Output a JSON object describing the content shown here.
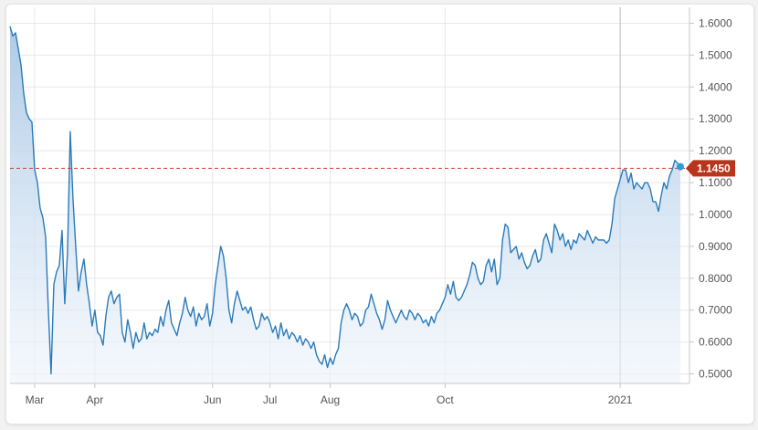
{
  "chart_data": {
    "type": "area",
    "title": "",
    "xlabel": "",
    "ylabel": "",
    "ylim": [
      0.47,
      1.65
    ],
    "y_ticks": [
      "1.6000",
      "1.5000",
      "1.4000",
      "1.3000",
      "1.2000",
      "1.1000",
      "1.0000",
      "0.9000",
      "0.8000",
      "0.7000",
      "0.6000",
      "0.5000"
    ],
    "x_ticks": [
      {
        "label": "Mar",
        "index": 9
      },
      {
        "label": "Apr",
        "index": 31
      },
      {
        "label": "Jun",
        "index": 74
      },
      {
        "label": "Jul",
        "index": 95
      },
      {
        "label": "Aug",
        "index": 117
      },
      {
        "label": "Oct",
        "index": 159
      },
      {
        "label": "2021",
        "index": 223
      }
    ],
    "marker_index": 223,
    "current_value": 1.145,
    "current_label": "1.1450",
    "grid": true,
    "colors": {
      "line": "#2b7bb9",
      "fill_top": "#a9c8e6",
      "fill_bottom": "#eef4fb",
      "ref_line": "#d0462b",
      "price_tag": "#b8341b",
      "dot": "#2e9be0",
      "grid": "#e8e8e8",
      "axis": "#c8c8c8"
    },
    "series": [
      {
        "values": [
          1.59,
          1.56,
          1.57,
          1.52,
          1.47,
          1.38,
          1.32,
          1.3,
          1.29,
          1.14,
          1.1,
          1.02,
          0.99,
          0.93,
          0.7,
          0.5,
          0.78,
          0.82,
          0.84,
          0.95,
          0.72,
          0.88,
          1.26,
          1.05,
          0.9,
          0.76,
          0.82,
          0.86,
          0.78,
          0.72,
          0.65,
          0.7,
          0.63,
          0.62,
          0.59,
          0.68,
          0.74,
          0.76,
          0.72,
          0.74,
          0.75,
          0.63,
          0.6,
          0.67,
          0.63,
          0.58,
          0.63,
          0.6,
          0.61,
          0.66,
          0.61,
          0.63,
          0.62,
          0.64,
          0.63,
          0.68,
          0.65,
          0.7,
          0.73,
          0.66,
          0.64,
          0.62,
          0.66,
          0.69,
          0.74,
          0.7,
          0.68,
          0.71,
          0.65,
          0.69,
          0.67,
          0.68,
          0.72,
          0.65,
          0.69,
          0.78,
          0.84,
          0.9,
          0.87,
          0.8,
          0.7,
          0.66,
          0.72,
          0.76,
          0.73,
          0.7,
          0.71,
          0.69,
          0.71,
          0.67,
          0.64,
          0.65,
          0.69,
          0.67,
          0.68,
          0.66,
          0.63,
          0.65,
          0.61,
          0.66,
          0.62,
          0.64,
          0.61,
          0.63,
          0.62,
          0.6,
          0.62,
          0.59,
          0.61,
          0.6,
          0.58,
          0.6,
          0.56,
          0.54,
          0.53,
          0.56,
          0.52,
          0.55,
          0.53,
          0.56,
          0.58,
          0.66,
          0.7,
          0.72,
          0.7,
          0.67,
          0.69,
          0.68,
          0.65,
          0.66,
          0.7,
          0.71,
          0.75,
          0.72,
          0.69,
          0.67,
          0.64,
          0.67,
          0.73,
          0.7,
          0.68,
          0.66,
          0.68,
          0.7,
          0.68,
          0.67,
          0.7,
          0.69,
          0.67,
          0.69,
          0.68,
          0.66,
          0.67,
          0.65,
          0.68,
          0.66,
          0.69,
          0.7,
          0.72,
          0.74,
          0.78,
          0.75,
          0.79,
          0.74,
          0.73,
          0.74,
          0.76,
          0.78,
          0.81,
          0.85,
          0.84,
          0.8,
          0.78,
          0.79,
          0.84,
          0.86,
          0.82,
          0.86,
          0.78,
          0.8,
          0.92,
          0.97,
          0.96,
          0.88,
          0.89,
          0.9,
          0.86,
          0.88,
          0.85,
          0.83,
          0.84,
          0.87,
          0.89,
          0.85,
          0.86,
          0.92,
          0.94,
          0.91,
          0.88,
          0.97,
          0.95,
          0.92,
          0.94,
          0.9,
          0.92,
          0.89,
          0.92,
          0.91,
          0.94,
          0.93,
          0.92,
          0.95,
          0.93,
          0.91,
          0.93,
          0.92,
          0.92,
          0.92,
          0.91,
          0.92,
          0.97,
          1.05,
          1.08,
          1.11,
          1.14,
          1.14,
          1.1,
          1.13,
          1.08,
          1.1,
          1.09,
          1.08,
          1.1,
          1.1,
          1.08,
          1.04,
          1.04,
          1.01,
          1.06,
          1.1,
          1.08,
          1.12,
          1.14,
          1.17,
          1.16,
          1.15
        ]
      }
    ]
  }
}
